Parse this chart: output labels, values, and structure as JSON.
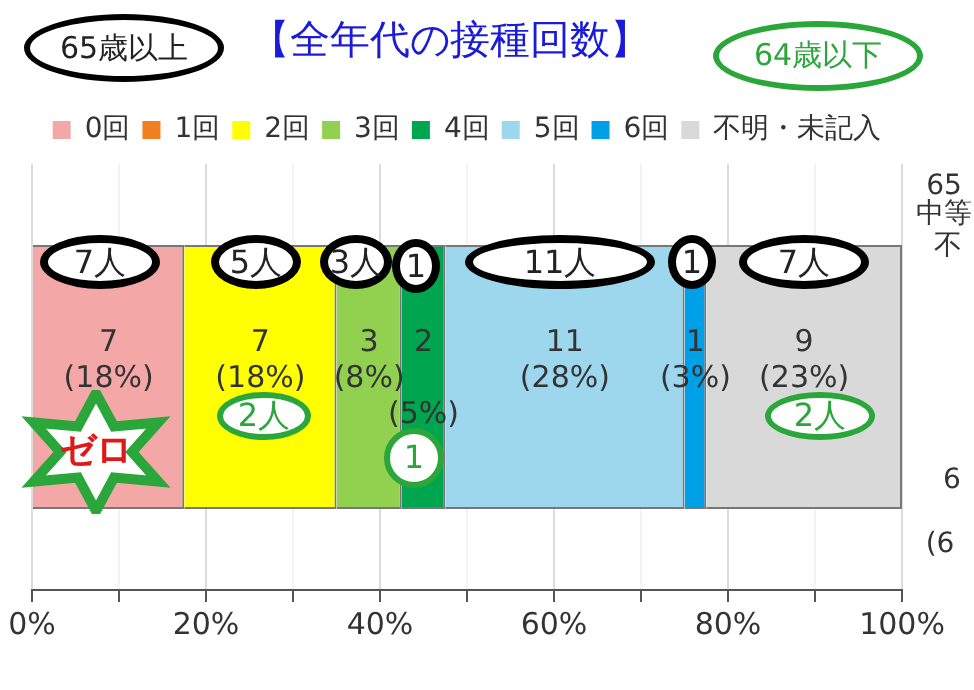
{
  "chart_data": {
    "type": "bar",
    "title": "【全年代の接種回数】",
    "orientation": "horizontal",
    "stacked": true,
    "categories": [
      null
    ],
    "series": [
      {
        "name": "0回",
        "color": "#f4a7a7",
        "values": [
          17.5
        ],
        "value_labels": [
          "7\n(18%)"
        ]
      },
      {
        "name": "1回",
        "color": "#f07f1f",
        "values": [
          0
        ],
        "value_labels": [
          null
        ]
      },
      {
        "name": "2回",
        "color": "#ffff00",
        "values": [
          17.5
        ],
        "value_labels": [
          "7\n(18%)"
        ]
      },
      {
        "name": "3回",
        "color": "#92d050",
        "values": [
          7.5
        ],
        "value_labels": [
          "3\n(8%)"
        ]
      },
      {
        "name": "4回",
        "color": "#00a550",
        "values": [
          5
        ],
        "value_labels": [
          "2\n(5%)"
        ]
      },
      {
        "name": "5回",
        "color": "#9dd7ee",
        "values": [
          27.5
        ],
        "value_labels": [
          "11\n(28%)"
        ]
      },
      {
        "name": "6回",
        "color": "#00a0e9",
        "values": [
          2.5
        ],
        "value_labels": [
          "1\n(3%)"
        ]
      },
      {
        "name": "不明・未記入",
        "color": "#d9d9d9",
        "values": [
          22.5
        ],
        "value_labels": [
          "9\n(23%)"
        ]
      }
    ],
    "xlim": [
      0,
      100
    ],
    "xticks": [
      {
        "value": 0,
        "label": "0%"
      },
      {
        "value": 10,
        "label": null
      },
      {
        "value": 20,
        "label": "20%"
      },
      {
        "value": 30,
        "label": null
      },
      {
        "value": 40,
        "label": "40%"
      },
      {
        "value": 50,
        "label": null
      },
      {
        "value": 60,
        "label": "60%"
      },
      {
        "value": 70,
        "label": null
      },
      {
        "value": 80,
        "label": "80%"
      },
      {
        "value": 90,
        "label": null
      },
      {
        "value": 100,
        "label": "100%"
      }
    ],
    "grid": "x",
    "legend": "top",
    "annotations": [
      "65歳以上",
      "64歳以下",
      "7人",
      "5人",
      "3人",
      "1",
      "11人",
      "1",
      "7人",
      "2人",
      "1",
      "2人",
      "ゼロ",
      "65",
      "中等",
      "不",
      "6",
      "(6"
    ]
  }
}
